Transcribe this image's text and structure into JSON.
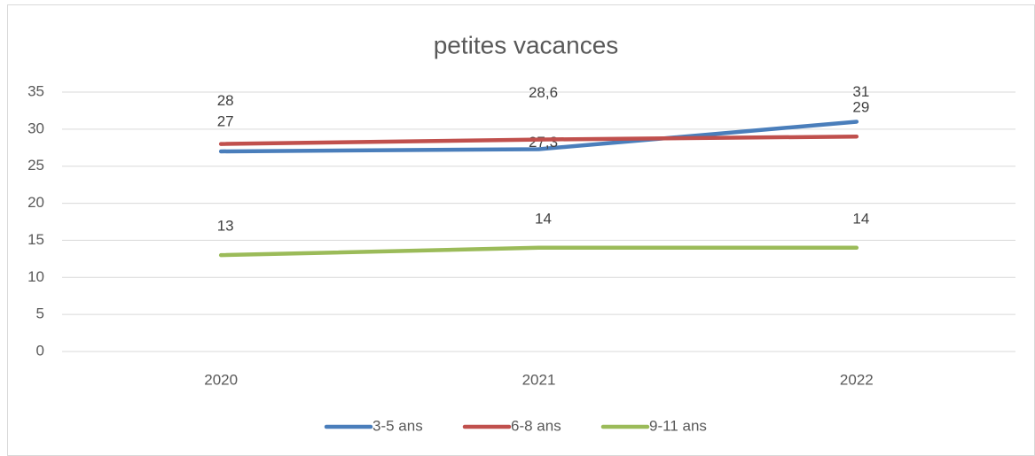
{
  "chart_data": {
    "type": "line",
    "title": "petites vacances",
    "categories": [
      "2020",
      "2021",
      "2022"
    ],
    "series": [
      {
        "name": "3-5 ans",
        "color": "#4a7ebb",
        "values": [
          27,
          27.3,
          31
        ],
        "value_labels": [
          "27",
          "27,3",
          "31"
        ]
      },
      {
        "name": "6-8 ans",
        "color": "#c0504d",
        "values": [
          28,
          28.6,
          29
        ],
        "value_labels": [
          "28",
          "28,6",
          "29"
        ]
      },
      {
        "name": "9-11 ans",
        "color": "#9bbb59",
        "values": [
          13,
          14,
          14
        ]
      }
    ],
    "ylim": [
      0,
      35
    ],
    "yticks": [
      0,
      5,
      10,
      15,
      20,
      25,
      30,
      35
    ],
    "grid": true,
    "legend": "bottom"
  }
}
